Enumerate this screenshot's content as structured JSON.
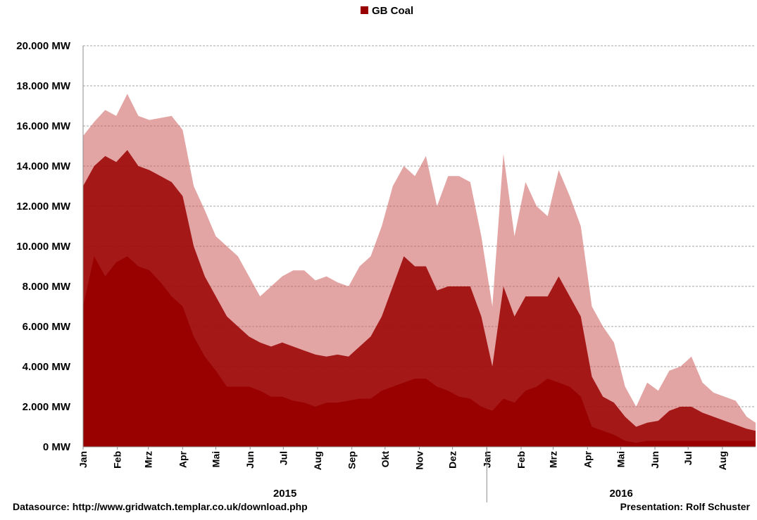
{
  "chart_data": {
    "type": "area",
    "legend": {
      "label": "GB Coal",
      "color": "#990000",
      "position": "top-center"
    },
    "y_ticks": [
      "0 MW",
      "2.000 MW",
      "4.000 MW",
      "6.000 MW",
      "8.000 MW",
      "10.000 MW",
      "12.000 MW",
      "14.000 MW",
      "16.000 MW",
      "18.000 MW",
      "20.000 MW"
    ],
    "ylim": [
      0,
      20000
    ],
    "xlim": [
      "2015-01-01",
      "2016-08-31"
    ],
    "grid": "horizontal-dashed",
    "x_months": [
      "Jan",
      "Feb",
      "Mrz",
      "Apr",
      "Mai",
      "Jun",
      "Jul",
      "Aug",
      "Sep",
      "Okt",
      "Nov",
      "Dez",
      "Jan",
      "Feb",
      "Mrz",
      "Apr",
      "Mai",
      "Jun",
      "Jul",
      "Aug"
    ],
    "x_years": [
      "2015",
      "2016"
    ],
    "series": [
      {
        "name": "GB Coal",
        "color": "#990000",
        "x": [
          "2015-01-01",
          "2015-01-11",
          "2015-01-21",
          "2015-01-31",
          "2015-02-10",
          "2015-02-20",
          "2015-03-02",
          "2015-03-12",
          "2015-03-22",
          "2015-04-01",
          "2015-04-11",
          "2015-04-21",
          "2015-05-01",
          "2015-05-11",
          "2015-05-21",
          "2015-05-31",
          "2015-06-10",
          "2015-06-20",
          "2015-06-30",
          "2015-07-10",
          "2015-07-20",
          "2015-07-30",
          "2015-08-09",
          "2015-08-19",
          "2015-08-29",
          "2015-09-08",
          "2015-09-18",
          "2015-09-28",
          "2015-10-08",
          "2015-10-18",
          "2015-10-28",
          "2015-11-07",
          "2015-11-17",
          "2015-11-27",
          "2015-12-07",
          "2015-12-17",
          "2015-12-27",
          "2016-01-06",
          "2016-01-16",
          "2016-01-26",
          "2016-02-05",
          "2016-02-15",
          "2016-02-25",
          "2016-03-06",
          "2016-03-16",
          "2016-03-26",
          "2016-04-05",
          "2016-04-15",
          "2016-04-25",
          "2016-05-05",
          "2016-05-15",
          "2016-05-25",
          "2016-06-04",
          "2016-06-14",
          "2016-06-24",
          "2016-07-04",
          "2016-07-14",
          "2016-07-24",
          "2016-08-03",
          "2016-08-13",
          "2016-08-23",
          "2016-08-31"
        ],
        "max": [
          15500,
          16200,
          16800,
          16500,
          17600,
          16500,
          16300,
          16400,
          16500,
          15800,
          13000,
          11800,
          10500,
          10000,
          9500,
          8500,
          7500,
          8000,
          8500,
          8800,
          8800,
          8300,
          8500,
          8200,
          8000,
          9000,
          9500,
          11000,
          13000,
          14000,
          13500,
          14500,
          12000,
          13500,
          13500,
          13200,
          10500,
          7000,
          14600,
          10500,
          13200,
          12000,
          11500,
          13800,
          12500,
          11000,
          7000,
          6000,
          5200,
          3000,
          2000,
          3200,
          2800,
          3800,
          4000,
          4500,
          3200,
          2700,
          2500,
          2300,
          1500,
          1200
        ],
        "min": [
          7000,
          9500,
          8500,
          9200,
          9500,
          9000,
          8800,
          8200,
          7500,
          7000,
          5500,
          4500,
          3800,
          3000,
          3000,
          3000,
          2800,
          2500,
          2500,
          2300,
          2200,
          2000,
          2200,
          2200,
          2300,
          2400,
          2400,
          2800,
          3000,
          3200,
          3400,
          3400,
          3000,
          2800,
          2500,
          2400,
          2000,
          1800,
          2400,
          2200,
          2800,
          3000,
          3400,
          3200,
          3000,
          2500,
          1000,
          800,
          600,
          300,
          200,
          300,
          300,
          300,
          300,
          300,
          300,
          300,
          300,
          300,
          300,
          300
        ],
        "typical": [
          13000,
          14000,
          14500,
          14200,
          14800,
          14000,
          13800,
          13500,
          13200,
          12500,
          10000,
          8500,
          7500,
          6500,
          6000,
          5500,
          5200,
          5000,
          5200,
          5000,
          4800,
          4600,
          4500,
          4600,
          4500,
          5000,
          5500,
          6500,
          8000,
          9500,
          9000,
          9000,
          7800,
          8000,
          8000,
          8000,
          6500,
          4000,
          8000,
          6500,
          7500,
          7500,
          7500,
          8500,
          7500,
          6500,
          3500,
          2500,
          2200,
          1500,
          1000,
          1200,
          1300,
          1800,
          2000,
          2000,
          1700,
          1500,
          1300,
          1100,
          900,
          800
        ]
      }
    ]
  },
  "footer": {
    "source": "Datasource: http://www.gridwatch.templar.co.uk/download.php",
    "credit": "Presentation: Rolf Schuster"
  }
}
